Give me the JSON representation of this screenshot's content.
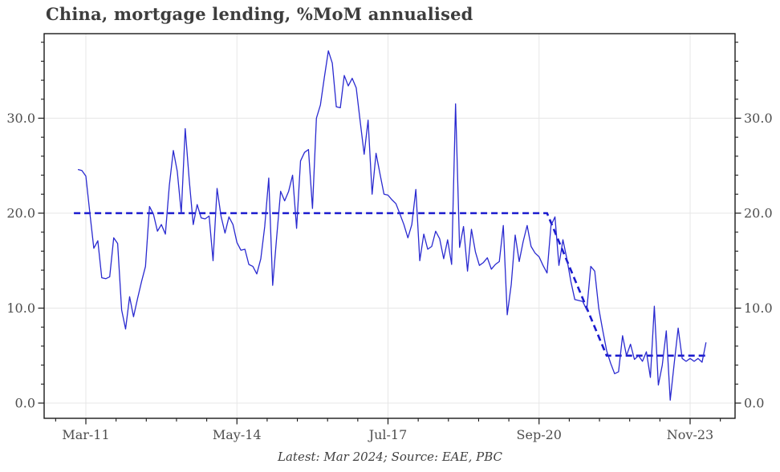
{
  "title": "China, mortgage lending, %MoM annualised",
  "footnote": "Latest: Mar 2024; Source: EAE, PBC",
  "colors": {
    "series_line": "#2a2ad0",
    "trend_line": "#1a1ace",
    "grid": "#e7e7e7",
    "axis": "#1a1a1a",
    "title_text": "#3d3d3d",
    "tick_text": "#4d4d4d"
  },
  "chart_data": {
    "type": "line",
    "title": "China, mortgage lending, %MoM annualised",
    "xlabel": "",
    "ylabel": "%MoM annualised",
    "grid": true,
    "legend": "none",
    "ylim": [
      -1.6,
      38.9
    ],
    "y_ticks": [
      0,
      10,
      20,
      30
    ],
    "y_minor_tick_step": 2,
    "x_tick_labels": [
      "Mar-11",
      "May-14",
      "Jul-17",
      "Sep-20",
      "Nov-23"
    ],
    "x_major_tick_interval_months": 38,
    "series": [
      {
        "name": "mortgage lending, %MoM annualised",
        "style": "solid",
        "freq": "monthly",
        "start": "2011-01",
        "end": "2024-03",
        "values": [
          24.6,
          24.5,
          23.9,
          20.0,
          16.3,
          17.1,
          13.2,
          13.1,
          13.3,
          17.4,
          16.8,
          9.8,
          7.8,
          11.2,
          9.1,
          11.0,
          12.8,
          14.4,
          20.7,
          19.9,
          18.1,
          18.8,
          17.8,
          22.9,
          26.6,
          24.4,
          20.0,
          28.9,
          23.5,
          18.8,
          20.9,
          19.5,
          19.4,
          19.7,
          15.0,
          22.6,
          19.7,
          17.9,
          19.6,
          18.8,
          16.9,
          16.1,
          16.2,
          14.6,
          14.4,
          13.6,
          15.2,
          18.6,
          23.7,
          12.4,
          17.5,
          22.3,
          21.3,
          22.3,
          24.0,
          18.4,
          25.5,
          26.4,
          26.7,
          20.5,
          30.0,
          31.4,
          34.3,
          37.1,
          35.8,
          31.2,
          31.1,
          34.5,
          33.4,
          34.2,
          33.2,
          29.7,
          26.2,
          29.8,
          22.0,
          26.3,
          24.1,
          22.0,
          21.9,
          21.4,
          21.0,
          19.9,
          18.8,
          17.4,
          18.8,
          22.5,
          15.0,
          17.8,
          16.2,
          16.5,
          18.1,
          17.3,
          15.2,
          17.2,
          14.6,
          31.5,
          16.4,
          18.6,
          13.9,
          18.3,
          15.9,
          14.5,
          14.8,
          15.3,
          14.1,
          14.6,
          14.9,
          18.7,
          9.3,
          12.5,
          17.7,
          14.9,
          17.0,
          18.7,
          16.5,
          15.8,
          15.4,
          14.5,
          13.7,
          18.7,
          19.6,
          14.5,
          17.2,
          15.2,
          12.8,
          10.9,
          10.8,
          10.7,
          9.8,
          14.4,
          13.9,
          10.0,
          7.7,
          5.5,
          4.2,
          3.1,
          3.3,
          7.1,
          5.0,
          6.2,
          4.6,
          5.0,
          4.4,
          5.4,
          2.7,
          10.2,
          1.9,
          4.0,
          7.6,
          0.3,
          4.2,
          7.9,
          4.7,
          4.4,
          4.7,
          4.4,
          4.7,
          4.3,
          6.4
        ]
      },
      {
        "name": "trend (dashed)",
        "style": "dashed",
        "points": [
          [
            "2010-12",
            20.0
          ],
          [
            "2020-11",
            20.0
          ],
          [
            "2022-02",
            5.0
          ],
          [
            "2024-03",
            5.0
          ]
        ]
      }
    ]
  }
}
